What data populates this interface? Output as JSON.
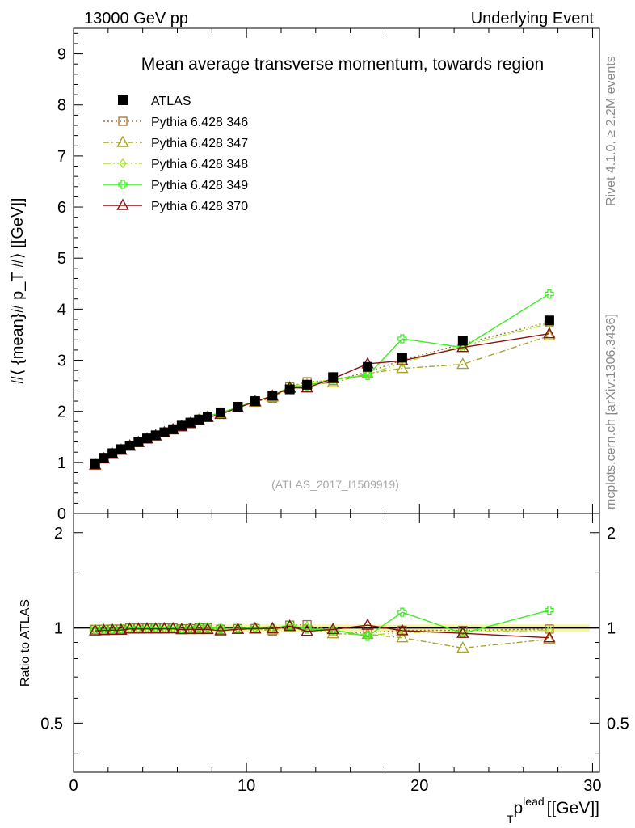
{
  "header": {
    "left": "13000 GeV pp",
    "right": "Underlying Event"
  },
  "side_labels": {
    "rivet": "Rivet 4.1.0, ≥ 2.2M events",
    "mcplots": "mcplots.cern.ch [arXiv:1306.3436]"
  },
  "watermark": "(ATLAS_2017_I1509919)",
  "colors": {
    "ATLAS": "#000000",
    "p346": "#a0703a",
    "p347": "#a5a52a",
    "p348": "#a8e02e",
    "p349": "#39ef20",
    "p370": "#8b1010",
    "band": "#f4f590"
  },
  "chart_data": [
    {
      "panel": "main",
      "type": "line",
      "title": "Mean average transverse momentum, towards region",
      "xlabel": "p_T^lead [[GeV]]",
      "xlabel_main": "p",
      "xlabel_sub": "T",
      "xlabel_sup": "lead",
      "xlabel_unit": "[[GeV]]",
      "ylabel": "#⟨ {mean}# p_T #⟩ [[GeV]]",
      "xlim": [
        0,
        30.4
      ],
      "ylim": [
        0,
        9.5
      ],
      "xticks": [
        0,
        10,
        20,
        30
      ],
      "xtick_labels": [
        "0",
        "10",
        "20",
        "30"
      ],
      "yticks": [
        0,
        1,
        2,
        3,
        4,
        5,
        6,
        7,
        8,
        9
      ],
      "ytick_labels": [
        "0",
        "1",
        "2",
        "3",
        "4",
        "5",
        "6",
        "7",
        "8",
        "9"
      ],
      "x": [
        1.25,
        1.75,
        2.25,
        2.75,
        3.25,
        3.75,
        4.25,
        4.75,
        5.25,
        5.75,
        6.25,
        6.75,
        7.25,
        7.75,
        8.5,
        9.5,
        10.5,
        11.5,
        12.5,
        13.5,
        15.0,
        17.0,
        19.0,
        22.5,
        27.5
      ],
      "series": [
        {
          "name": "ATLAS",
          "key": "ATLAS",
          "marker": "square",
          "dash": "none",
          "values": [
            0.97,
            1.09,
            1.18,
            1.26,
            1.33,
            1.4,
            1.47,
            1.53,
            1.59,
            1.65,
            1.72,
            1.78,
            1.84,
            1.9,
            1.98,
            2.09,
            2.2,
            2.31,
            2.43,
            2.52,
            2.67,
            2.87,
            3.05,
            3.38,
            3.78
          ]
        },
        {
          "name": "Pythia 6.428 346",
          "key": "p346",
          "marker": "open-square",
          "dash": "dotted",
          "values": [
            0.96,
            1.08,
            1.17,
            1.25,
            1.33,
            1.4,
            1.47,
            1.53,
            1.59,
            1.65,
            1.71,
            1.77,
            1.84,
            1.9,
            1.96,
            2.08,
            2.19,
            2.26,
            2.48,
            2.58,
            2.6,
            2.77,
            3.0,
            3.32,
            3.75
          ]
        },
        {
          "name": "Pythia 6.428 347",
          "key": "p347",
          "marker": "open-triangle",
          "dash": "dashdot",
          "values": [
            0.95,
            1.07,
            1.16,
            1.24,
            1.32,
            1.39,
            1.46,
            1.52,
            1.58,
            1.64,
            1.7,
            1.76,
            1.83,
            1.89,
            1.95,
            2.07,
            2.18,
            2.28,
            2.45,
            2.53,
            2.56,
            2.74,
            2.84,
            2.92,
            3.48
          ]
        },
        {
          "name": "Pythia 6.428 348",
          "key": "p348",
          "marker": "open-diamond",
          "dash": "dashdot2",
          "values": [
            0.95,
            1.07,
            1.16,
            1.24,
            1.32,
            1.39,
            1.46,
            1.53,
            1.59,
            1.65,
            1.71,
            1.78,
            1.85,
            1.91,
            1.97,
            2.08,
            2.2,
            2.3,
            2.49,
            2.55,
            2.63,
            2.72,
            2.95,
            3.28,
            3.72
          ]
        },
        {
          "name": "Pythia 6.428 349",
          "key": "p349",
          "marker": "open-cross",
          "dash": "none",
          "values": [
            0.96,
            1.08,
            1.17,
            1.25,
            1.33,
            1.4,
            1.47,
            1.53,
            1.59,
            1.65,
            1.71,
            1.78,
            1.85,
            1.91,
            1.97,
            2.08,
            2.2,
            2.3,
            2.48,
            2.5,
            2.63,
            2.7,
            3.42,
            3.25,
            4.3
          ]
        },
        {
          "name": "Pythia 6.428 370",
          "key": "p370",
          "marker": "open-triangle",
          "dash": "none",
          "values": [
            0.95,
            1.07,
            1.16,
            1.24,
            1.32,
            1.39,
            1.46,
            1.52,
            1.58,
            1.64,
            1.7,
            1.76,
            1.82,
            1.88,
            1.94,
            2.07,
            2.19,
            2.3,
            2.46,
            2.46,
            2.64,
            2.93,
            2.99,
            3.25,
            3.52
          ]
        }
      ]
    },
    {
      "panel": "ratio",
      "type": "line",
      "ylabel": "Ratio to ATLAS",
      "xlim": [
        0,
        30.4
      ],
      "ylim": [
        0.35,
        2.3
      ],
      "ylog": true,
      "yticks": [
        0.5,
        1,
        2
      ],
      "ytick_labels": [
        "0.5",
        "1",
        "2"
      ],
      "reference": 1.0
    }
  ]
}
